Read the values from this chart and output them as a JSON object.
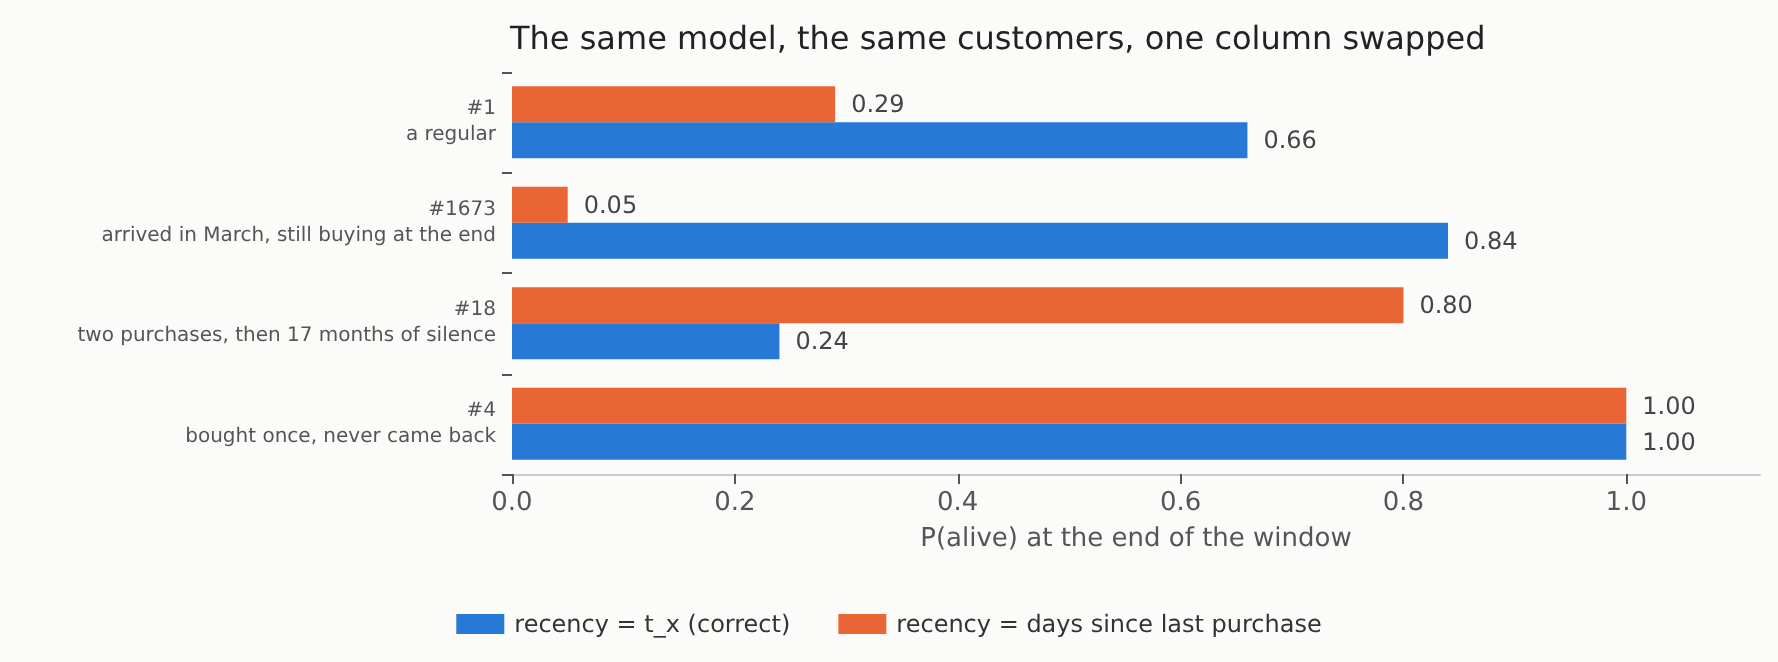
{
  "chart_data": {
    "type": "bar",
    "orientation": "horizontal",
    "title": "The same model, the same customers, one column swapped",
    "xlabel": "P(alive) at the end of the window",
    "categories": [
      "#1\na regular",
      "#1673\narrived in March, still buying at the end",
      "#18\ntwo purchases, then 17 months of silence",
      "#4\nbought once, never came back"
    ],
    "series": [
      {
        "name": "recency = t_x (correct)",
        "color": "#2878d6",
        "values": [
          0.66,
          0.84,
          0.24,
          1.0
        ],
        "value_labels": [
          "0.66",
          "0.84",
          "0.24",
          "1.00"
        ]
      },
      {
        "name": "recency = days since last purchase",
        "color": "#ea6535",
        "values": [
          0.29,
          0.05,
          0.8,
          1.0
        ],
        "value_labels": [
          "0.29",
          "0.05",
          "0.80",
          "1.00"
        ]
      }
    ],
    "xlim": [
      0,
      1.12
    ],
    "xticks": [
      {
        "value": 0,
        "label": "0.0"
      },
      {
        "value": 0.2,
        "label": "0.2"
      },
      {
        "value": 0.4,
        "label": "0.4"
      },
      {
        "value": 0.6,
        "label": "0.6"
      },
      {
        "value": 0.8,
        "label": "0.8"
      },
      {
        "value": 1.0,
        "label": "1.0"
      }
    ],
    "grid": false,
    "legend": "bottom"
  }
}
